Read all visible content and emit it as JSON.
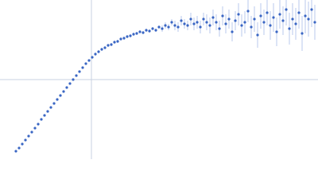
{
  "chart_data": {
    "type": "scatter",
    "color": "#3a66c4",
    "error_color": "#a9bde8",
    "reference_color": "#c9d2e2",
    "xlim": [
      0,
      100
    ],
    "ylim": [
      0,
      100
    ],
    "reference_lines": {
      "x": [
        28.75
      ],
      "y": [
        50
      ]
    },
    "x": [
      5,
      6,
      7,
      8,
      9,
      10,
      11,
      12,
      13,
      14,
      15,
      16,
      17,
      18,
      19,
      20,
      21,
      22,
      23,
      24,
      25,
      26,
      27,
      28,
      29,
      30,
      31,
      32,
      33,
      34,
      35,
      36,
      37,
      38,
      39,
      40,
      41,
      42,
      43,
      44,
      45,
      46,
      47,
      48,
      49,
      50,
      51,
      52,
      53,
      54,
      55,
      56,
      57,
      58,
      59,
      60,
      61,
      62,
      63,
      64,
      65,
      66,
      67,
      68,
      69,
      70,
      71,
      72,
      73,
      74,
      75,
      76,
      77,
      78,
      79,
      80,
      81,
      82,
      83,
      84,
      85,
      86,
      87,
      88,
      89,
      90,
      91,
      92,
      93,
      94,
      95,
      96,
      97,
      98,
      99
    ],
    "values": [
      5,
      7,
      9.5,
      12,
      14.5,
      17,
      19.5,
      22,
      25,
      27.5,
      30,
      32.5,
      35,
      37.5,
      40,
      42.5,
      45,
      47.5,
      50,
      52.5,
      55,
      57.5,
      60,
      62,
      64,
      66,
      67.5,
      69,
      70,
      71.5,
      72,
      73.5,
      74,
      75.5,
      76,
      77,
      77.5,
      78.5,
      79,
      80,
      79.5,
      81,
      80.5,
      82,
      81,
      83,
      82,
      84,
      83,
      86,
      84,
      83,
      87,
      85,
      84,
      88,
      85,
      86,
      83,
      88,
      86,
      84,
      89,
      86,
      82,
      90,
      85,
      88,
      80,
      87,
      91,
      84,
      86,
      93,
      83,
      88,
      78,
      90,
      86,
      92,
      84,
      89,
      80,
      91,
      87,
      94,
      82,
      88,
      85,
      92,
      79,
      90,
      88,
      94,
      86
    ],
    "errors": [
      0.3,
      0.3,
      0.3,
      0.3,
      0.3,
      0.3,
      0.3,
      0.3,
      0.3,
      0.3,
      0.5,
      0.5,
      0.5,
      0.5,
      0.5,
      0.5,
      0.5,
      0.5,
      0.5,
      0.5,
      0.5,
      0.5,
      0.5,
      0.5,
      0.5,
      1,
      1,
      1,
      1,
      1,
      1,
      1,
      1,
      1,
      1,
      1,
      1,
      1,
      1,
      1,
      1,
      1,
      1,
      1,
      1,
      1,
      2,
      2,
      2,
      2,
      3,
      3,
      3,
      3,
      3,
      4,
      4,
      4,
      4,
      4,
      5,
      5,
      5,
      5,
      5,
      6,
      6,
      6,
      6,
      6,
      7,
      7,
      7,
      7,
      7,
      8,
      8,
      8,
      8,
      8,
      9,
      9,
      9,
      9,
      9,
      10,
      10,
      10,
      10,
      10,
      11,
      11,
      11,
      11,
      11
    ]
  }
}
